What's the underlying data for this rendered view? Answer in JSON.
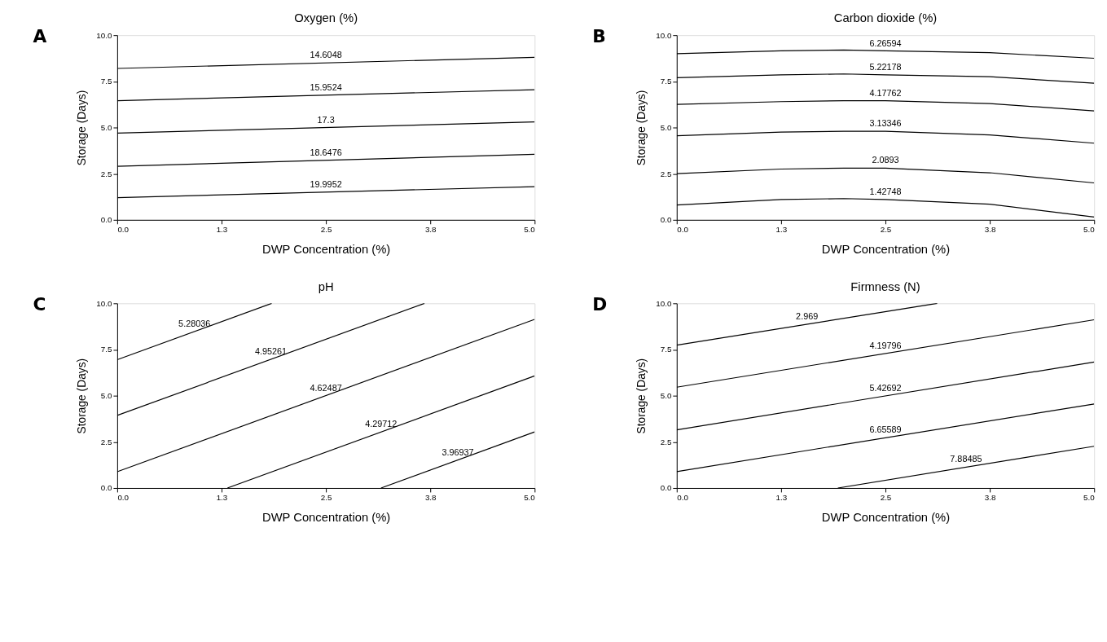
{
  "chart_data": [
    {
      "type": "line",
      "title": "Oxygen (%)",
      "xlabel": "DWP Concentration (%)",
      "ylabel": "Storage (Days)",
      "annotations": [
        "A"
      ],
      "xlim": [
        0,
        5
      ],
      "ylim": [
        0,
        10
      ],
      "xticks": [
        {
          "value": 0,
          "label": "0.0"
        },
        {
          "value": 1.25,
          "label": "1.3"
        },
        {
          "value": 2.5,
          "label": "2.5"
        },
        {
          "value": 3.75,
          "label": "3.8"
        },
        {
          "value": 5,
          "label": "5.0"
        }
      ],
      "yticks": [
        {
          "value": 0,
          "label": "0.0"
        },
        {
          "value": 2.5,
          "label": "2.5"
        },
        {
          "value": 5,
          "label": "5.0"
        },
        {
          "value": 7.5,
          "label": "7.5"
        },
        {
          "value": 10,
          "label": "10.0"
        }
      ],
      "series": [
        {
          "name": "14.6048",
          "color": "#000000",
          "x": [
            0,
            5
          ],
          "values": [
            8.2,
            8.8
          ]
        },
        {
          "name": "15.9524",
          "color": "#000000",
          "x": [
            0,
            5
          ],
          "values": [
            6.45,
            7.05
          ]
        },
        {
          "name": "17.3",
          "color": "#000000",
          "x": [
            0,
            5
          ],
          "values": [
            4.7,
            5.3
          ]
        },
        {
          "name": "18.6476",
          "color": "#000000",
          "x": [
            0,
            5
          ],
          "values": [
            2.9,
            3.55
          ]
        },
        {
          "name": "19.9952",
          "color": "#000000",
          "x": [
            0,
            5
          ],
          "values": [
            1.2,
            1.8
          ]
        }
      ]
    },
    {
      "type": "line",
      "title": "Carbon dioxide (%)",
      "xlabel": "DWP Concentration (%)",
      "ylabel": "Storage (Days)",
      "annotations": [
        "B"
      ],
      "xlim": [
        0,
        5
      ],
      "ylim": [
        0,
        10
      ],
      "xticks": [
        {
          "value": 0,
          "label": "0.0"
        },
        {
          "value": 1.25,
          "label": "1.3"
        },
        {
          "value": 2.5,
          "label": "2.5"
        },
        {
          "value": 3.75,
          "label": "3.8"
        },
        {
          "value": 5,
          "label": "5.0"
        }
      ],
      "yticks": [
        {
          "value": 0,
          "label": "0.0"
        },
        {
          "value": 2.5,
          "label": "2.5"
        },
        {
          "value": 5,
          "label": "5.0"
        },
        {
          "value": 7.5,
          "label": "7.5"
        },
        {
          "value": 10,
          "label": "10.0"
        }
      ],
      "series": [
        {
          "name": "6.26594",
          "color": "#000000",
          "x": [
            0,
            1.25,
            2,
            2.5,
            3.75,
            5
          ],
          "values": [
            9.0,
            9.15,
            9.2,
            9.15,
            9.05,
            8.75
          ]
        },
        {
          "name": "5.22178",
          "color": "#000000",
          "x": [
            0,
            1.25,
            2,
            2.5,
            3.75,
            5
          ],
          "values": [
            7.7,
            7.85,
            7.9,
            7.85,
            7.75,
            7.4
          ]
        },
        {
          "name": "4.17762",
          "color": "#000000",
          "x": [
            0,
            1.25,
            2,
            2.5,
            3.75,
            5
          ],
          "values": [
            6.25,
            6.4,
            6.45,
            6.45,
            6.3,
            5.9
          ]
        },
        {
          "name": "3.13346",
          "color": "#000000",
          "x": [
            0,
            1.25,
            2,
            2.5,
            3.75,
            5
          ],
          "values": [
            4.55,
            4.75,
            4.8,
            4.8,
            4.6,
            4.15
          ]
        },
        {
          "name": "2.0893",
          "color": "#000000",
          "x": [
            0,
            1.25,
            2,
            2.5,
            3.75,
            5
          ],
          "values": [
            2.5,
            2.75,
            2.8,
            2.8,
            2.55,
            2.0
          ]
        },
        {
          "name": "1.42748",
          "color": "#000000",
          "x": [
            0,
            1.25,
            2,
            2.5,
            3.75,
            5
          ],
          "values": [
            0.8,
            1.1,
            1.15,
            1.1,
            0.85,
            0.15
          ]
        }
      ]
    },
    {
      "type": "line",
      "title": "pH",
      "xlabel": "DWP Concentration (%)",
      "ylabel": "Storage (Days)",
      "annotations": [
        "C"
      ],
      "xlim": [
        0,
        5
      ],
      "ylim": [
        0,
        10
      ],
      "xticks": [
        {
          "value": 0,
          "label": "0.0"
        },
        {
          "value": 1.25,
          "label": "1.3"
        },
        {
          "value": 2.5,
          "label": "2.5"
        },
        {
          "value": 3.75,
          "label": "3.8"
        },
        {
          "value": 5,
          "label": "5.0"
        }
      ],
      "yticks": [
        {
          "value": 0,
          "label": "0.0"
        },
        {
          "value": 2.5,
          "label": "2.5"
        },
        {
          "value": 5,
          "label": "5.0"
        },
        {
          "value": 7.5,
          "label": "7.5"
        },
        {
          "value": 10,
          "label": "10.0"
        }
      ],
      "series": [
        {
          "name": "5.28036",
          "color": "#000000",
          "x": [
            0,
            1.85
          ],
          "values": [
            6.95,
            10
          ]
        },
        {
          "name": "4.95261",
          "color": "#000000",
          "x": [
            0,
            3.68
          ],
          "values": [
            3.93,
            10
          ]
        },
        {
          "name": "4.62487",
          "color": "#000000",
          "x": [
            0,
            5
          ],
          "values": [
            0.88,
            9.13
          ]
        },
        {
          "name": "4.29712",
          "color": "#000000",
          "x": [
            1.32,
            5
          ],
          "values": [
            0,
            6.07
          ]
        },
        {
          "name": "3.96937",
          "color": "#000000",
          "x": [
            3.16,
            5
          ],
          "values": [
            0,
            3.04
          ]
        }
      ]
    },
    {
      "type": "line",
      "title": "Firmness (N)",
      "xlabel": "DWP Concentration (%)",
      "ylabel": "Storage (Days)",
      "annotations": [
        "D"
      ],
      "xlim": [
        0,
        5
      ],
      "ylim": [
        0,
        10
      ],
      "xticks": [
        {
          "value": 0,
          "label": "0.0"
        },
        {
          "value": 1.25,
          "label": "1.3"
        },
        {
          "value": 2.5,
          "label": "2.5"
        },
        {
          "value": 3.75,
          "label": "3.8"
        },
        {
          "value": 5,
          "label": "5.0"
        }
      ],
      "yticks": [
        {
          "value": 0,
          "label": "0.0"
        },
        {
          "value": 2.5,
          "label": "2.5"
        },
        {
          "value": 5,
          "label": "5.0"
        },
        {
          "value": 7.5,
          "label": "7.5"
        },
        {
          "value": 10,
          "label": "10.0"
        }
      ],
      "series": [
        {
          "name": "2.969",
          "color": "#000000",
          "x": [
            0,
            3.12
          ],
          "values": [
            7.74,
            10
          ]
        },
        {
          "name": "4.19796",
          "color": "#000000",
          "x": [
            0,
            5
          ],
          "values": [
            5.46,
            9.11
          ]
        },
        {
          "name": "5.42692",
          "color": "#000000",
          "x": [
            0,
            5
          ],
          "values": [
            3.15,
            6.82
          ]
        },
        {
          "name": "6.65589",
          "color": "#000000",
          "x": [
            0,
            5
          ],
          "values": [
            0.89,
            4.55
          ]
        },
        {
          "name": "7.88485",
          "color": "#000000",
          "x": [
            1.93,
            5
          ],
          "values": [
            0,
            2.26
          ]
        }
      ]
    }
  ]
}
